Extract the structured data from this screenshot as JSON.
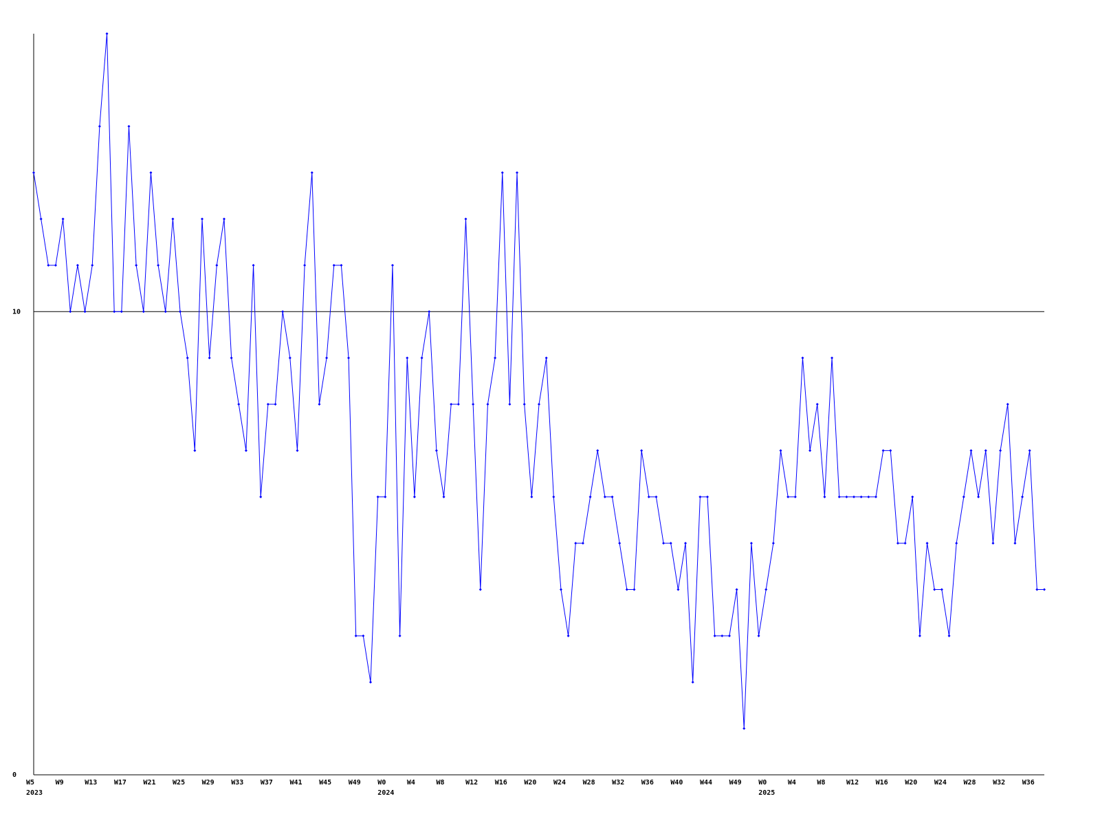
{
  "chart_data": {
    "type": "line",
    "categories": [
      "W5\n2023",
      null,
      null,
      null,
      "W9",
      null,
      null,
      null,
      "W13",
      null,
      null,
      null,
      "W17",
      null,
      null,
      null,
      "W21",
      null,
      null,
      null,
      "W25",
      null,
      null,
      null,
      "W29",
      null,
      null,
      null,
      "W33",
      null,
      null,
      null,
      "W37",
      null,
      null,
      null,
      "W41",
      null,
      null,
      null,
      "W45",
      null,
      null,
      null,
      "W49",
      null,
      null,
      null,
      "W0\n2024",
      null,
      null,
      null,
      "W4",
      null,
      null,
      null,
      "W8",
      null,
      null,
      null,
      "W12",
      null,
      null,
      null,
      "W16",
      null,
      null,
      null,
      "W20",
      null,
      null,
      null,
      "W24",
      null,
      null,
      null,
      "W28",
      null,
      null,
      null,
      "W32",
      null,
      null,
      null,
      "W36",
      null,
      null,
      null,
      "W40",
      null,
      null,
      null,
      "W44",
      null,
      null,
      null,
      "W49",
      null,
      null,
      null,
      "W0\n2025",
      null,
      null,
      null,
      "W4",
      null,
      null,
      null,
      "W8",
      null,
      null,
      null,
      "W12",
      null,
      null,
      null,
      "W16",
      null,
      null,
      null,
      "W20",
      null,
      null,
      null,
      "W24",
      null,
      null,
      null,
      "W28",
      null,
      null,
      null,
      "W32",
      null,
      null,
      null,
      "W36",
      null,
      null
    ],
    "series": [
      {
        "color": "#0000ff",
        "values": [
          13,
          12,
          11,
          11,
          12,
          10,
          11,
          10,
          11,
          14,
          16,
          10,
          10,
          14,
          11,
          10,
          13,
          11,
          10,
          12,
          10,
          9,
          7,
          12,
          9,
          11,
          12,
          9,
          8,
          7,
          11,
          6,
          8,
          8,
          10,
          9,
          7,
          11,
          13,
          8,
          9,
          11,
          11,
          9,
          3,
          3,
          2,
          6,
          6,
          11,
          3,
          9,
          6,
          9,
          10,
          7,
          6,
          8,
          8,
          12,
          8,
          4,
          8,
          9,
          13,
          8,
          13,
          8,
          6,
          8,
          9,
          6,
          4,
          3,
          5,
          5,
          6,
          7,
          6,
          6,
          5,
          4,
          4,
          7,
          6,
          6,
          5,
          5,
          4,
          5,
          2,
          6,
          6,
          3,
          3,
          3,
          4,
          1,
          5,
          3,
          4,
          5,
          7,
          6,
          6,
          9,
          7,
          8,
          6,
          9,
          6,
          6,
          6,
          6,
          6,
          6,
          7,
          7,
          5,
          5,
          6,
          3,
          5,
          4,
          4,
          3,
          5,
          6,
          7,
          6,
          7,
          5,
          7,
          8,
          5,
          6,
          7,
          4,
          4
        ]
      }
    ],
    "ylim": [
      0,
      16
    ],
    "yticks": [
      0,
      10
    ],
    "grid": true
  }
}
